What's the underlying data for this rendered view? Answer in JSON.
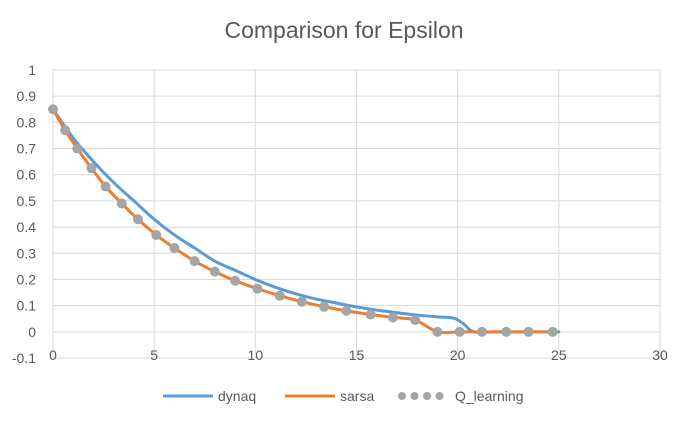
{
  "chart_data": {
    "type": "line",
    "title": "Comparison for Epsilon",
    "xlabel": "",
    "ylabel": "",
    "xlim": [
      0,
      30
    ],
    "ylim": [
      -0.1,
      1
    ],
    "x_ticks": [
      "0",
      "5",
      "10",
      "15",
      "20",
      "25",
      "30"
    ],
    "y_ticks": [
      "-0.1",
      "0",
      "0.1",
      "0.2",
      "0.3",
      "0.4",
      "0.5",
      "0.6",
      "0.7",
      "0.8",
      "0.9",
      "1"
    ],
    "grid": true,
    "legend_position": "bottom",
    "series": [
      {
        "name": "dynaq",
        "style": "line",
        "color": "#5B9BD5",
        "points": [
          [
            0,
            0.85
          ],
          [
            1,
            0.74
          ],
          [
            2,
            0.65
          ],
          [
            3,
            0.57
          ],
          [
            4,
            0.5
          ],
          [
            5,
            0.43
          ],
          [
            6,
            0.37
          ],
          [
            7,
            0.32
          ],
          [
            8,
            0.27
          ],
          [
            9,
            0.235
          ],
          [
            10,
            0.2
          ],
          [
            11,
            0.17
          ],
          [
            12,
            0.145
          ],
          [
            13,
            0.125
          ],
          [
            14,
            0.11
          ],
          [
            15,
            0.095
          ],
          [
            16,
            0.083
          ],
          [
            17,
            0.073
          ],
          [
            18,
            0.064
          ],
          [
            19,
            0.057
          ],
          [
            19.8,
            0.052
          ],
          [
            20.3,
            0.03
          ],
          [
            20.8,
            0.0
          ],
          [
            22,
            0.0
          ],
          [
            25,
            0.0
          ]
        ]
      },
      {
        "name": "sarsa",
        "style": "line",
        "color": "#ED7D31",
        "points": [
          [
            0,
            0.85
          ],
          [
            0.6,
            0.77
          ],
          [
            1.2,
            0.7
          ],
          [
            1.9,
            0.625
          ],
          [
            2.6,
            0.555
          ],
          [
            3.4,
            0.49
          ],
          [
            4.2,
            0.43
          ],
          [
            5.1,
            0.37
          ],
          [
            6.0,
            0.32
          ],
          [
            7.0,
            0.27
          ],
          [
            8.0,
            0.23
          ],
          [
            9.0,
            0.195
          ],
          [
            10.1,
            0.165
          ],
          [
            11.2,
            0.138
          ],
          [
            12.3,
            0.115
          ],
          [
            13.4,
            0.096
          ],
          [
            14.5,
            0.08
          ],
          [
            15.7,
            0.066
          ],
          [
            16.8,
            0.055
          ],
          [
            17.9,
            0.045
          ],
          [
            19.0,
            0.0
          ],
          [
            20.1,
            0.0
          ],
          [
            21.2,
            0.0
          ],
          [
            22.4,
            0.0
          ],
          [
            23.5,
            0.0
          ],
          [
            24.7,
            0.0
          ]
        ]
      },
      {
        "name": "Q_learning",
        "style": "markers",
        "color": "#A5A5A5",
        "points": [
          [
            0,
            0.85
          ],
          [
            0.6,
            0.77
          ],
          [
            1.2,
            0.7
          ],
          [
            1.9,
            0.625
          ],
          [
            2.6,
            0.555
          ],
          [
            3.4,
            0.49
          ],
          [
            4.2,
            0.43
          ],
          [
            5.1,
            0.37
          ],
          [
            6.0,
            0.32
          ],
          [
            7.0,
            0.27
          ],
          [
            8.0,
            0.23
          ],
          [
            9.0,
            0.195
          ],
          [
            10.1,
            0.165
          ],
          [
            11.2,
            0.138
          ],
          [
            12.3,
            0.115
          ],
          [
            13.4,
            0.096
          ],
          [
            14.5,
            0.08
          ],
          [
            15.7,
            0.066
          ],
          [
            16.8,
            0.055
          ],
          [
            17.9,
            0.045
          ],
          [
            19.0,
            0.0
          ],
          [
            20.1,
            0.0
          ],
          [
            21.2,
            0.0
          ],
          [
            22.4,
            0.0
          ],
          [
            23.5,
            0.0
          ],
          [
            24.7,
            0.0
          ]
        ]
      }
    ]
  }
}
